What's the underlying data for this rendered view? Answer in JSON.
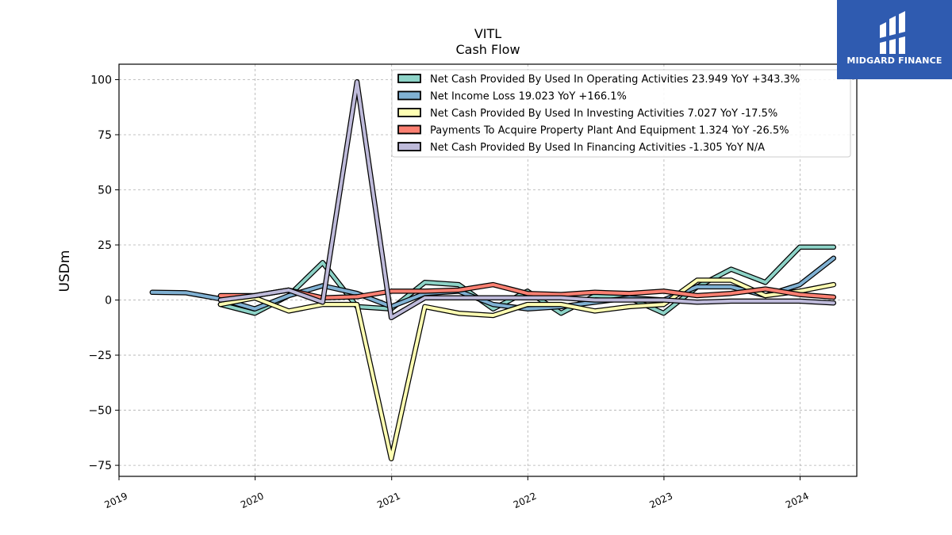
{
  "chart_data": {
    "type": "line",
    "title": "VITL",
    "subtitle": "Cash Flow",
    "ylabel": "USDm",
    "xlabel": "",
    "ylim": [
      -80,
      107
    ],
    "xlim": [
      "2019-01-01",
      "2024-06-01"
    ],
    "yticks": [
      100,
      75,
      50,
      25,
      0,
      -25,
      -50,
      -75
    ],
    "ytick_labels": [
      "100",
      "75",
      "50",
      "25",
      "0",
      "−25",
      "−50",
      "−75"
    ],
    "xticks": [
      "2019-01-01",
      "2020-01-01",
      "2021-01-01",
      "2022-01-01",
      "2023-01-01",
      "2024-01-01"
    ],
    "xtick_labels": [
      "2019",
      "2020",
      "2021",
      "2022",
      "2023",
      "2024"
    ],
    "grid": true,
    "legend_position": "top-right",
    "series": [
      {
        "name": "Net Cash Provided By Used In Operating Activities  23.949 YoY +343.3%",
        "color": "#8dd3c7",
        "x": [
          "2019-09-30",
          "2019-12-31",
          "2020-03-31",
          "2020-06-30",
          "2020-09-30",
          "2020-12-31",
          "2021-03-31",
          "2021-06-30",
          "2021-09-30",
          "2021-12-31",
          "2022-03-31",
          "2022-06-30",
          "2022-09-30",
          "2022-12-31",
          "2023-03-31",
          "2023-06-30",
          "2023-09-30",
          "2023-12-31",
          "2024-03-31"
        ],
        "values": [
          -2,
          -6,
          2,
          17,
          -3,
          -4,
          8,
          7,
          -4,
          4,
          -6,
          2,
          1,
          -6,
          6,
          14,
          8,
          24,
          24
        ]
      },
      {
        "name": "Net Income Loss  19.023 YoY +166.1%",
        "color": "#80b1d3",
        "x": [
          "2019-03-31",
          "2019-06-30",
          "2019-09-30",
          "2019-12-31",
          "2020-03-31",
          "2020-06-30",
          "2020-09-30",
          "2020-12-31",
          "2021-03-31",
          "2021-06-30",
          "2021-09-30",
          "2021-12-31",
          "2022-03-31",
          "2022-06-30",
          "2022-09-30",
          "2022-12-31",
          "2023-03-31",
          "2023-06-30",
          "2023-09-30",
          "2023-12-31",
          "2024-03-31"
        ],
        "values": [
          3.5,
          3.3,
          0.5,
          -4,
          2,
          6.5,
          3,
          -3,
          3,
          4,
          -2,
          -4,
          -3,
          -1,
          1,
          0,
          6,
          6,
          2,
          7,
          19
        ]
      },
      {
        "name": "Net Cash Provided By Used In Investing Activities  7.027 YoY -17.5%",
        "color": "#ffffb3",
        "x": [
          "2019-09-30",
          "2019-12-31",
          "2020-03-31",
          "2020-06-30",
          "2020-09-30",
          "2020-12-31",
          "2021-03-31",
          "2021-06-30",
          "2021-09-30",
          "2021-12-31",
          "2022-03-31",
          "2022-06-30",
          "2022-09-30",
          "2022-12-31",
          "2023-03-31",
          "2023-06-30",
          "2023-09-30",
          "2023-12-31",
          "2024-03-31"
        ],
        "values": [
          -2,
          1,
          -5,
          -2,
          -2,
          -72,
          -3,
          -6,
          -7,
          -2,
          -2,
          -5,
          -3,
          -2,
          9,
          9,
          2,
          4,
          7
        ]
      },
      {
        "name": "Payments To Acquire Property Plant And Equipment  1.324 YoY -26.5%",
        "color": "#fb8072",
        "x": [
          "2019-09-30",
          "2019-12-31",
          "2020-03-31",
          "2020-06-30",
          "2020-09-30",
          "2020-12-31",
          "2021-03-31",
          "2021-06-30",
          "2021-09-30",
          "2021-12-31",
          "2022-03-31",
          "2022-06-30",
          "2022-09-30",
          "2022-12-31",
          "2023-03-31",
          "2023-06-30",
          "2023-09-30",
          "2023-12-31",
          "2024-03-31"
        ],
        "values": [
          2,
          2,
          4.5,
          1,
          1.5,
          4,
          4,
          4.5,
          7,
          3,
          2.5,
          3.5,
          3,
          4,
          2,
          3,
          5,
          2.5,
          1.3
        ]
      },
      {
        "name": "Net Cash Provided By Used In Financing Activities  -1.305 YoY N/A",
        "color": "#bebada",
        "x": [
          "2019-09-30",
          "2019-12-31",
          "2020-03-31",
          "2020-06-30",
          "2020-09-30",
          "2020-12-31",
          "2021-03-31",
          "2021-06-30",
          "2021-09-30",
          "2021-12-31",
          "2022-03-31",
          "2022-06-30",
          "2022-09-30",
          "2022-12-31",
          "2023-03-31",
          "2023-06-30",
          "2023-09-30",
          "2023-12-31",
          "2024-03-31"
        ],
        "values": [
          0,
          2,
          4.5,
          -1,
          99,
          -8,
          1,
          1,
          1,
          1,
          1,
          0,
          0,
          0,
          -1,
          -0.5,
          -0.5,
          -0.5,
          -1.3
        ]
      }
    ]
  },
  "logo": {
    "text": "MIDGARD FINANCE",
    "background": "#2f5bb0"
  }
}
